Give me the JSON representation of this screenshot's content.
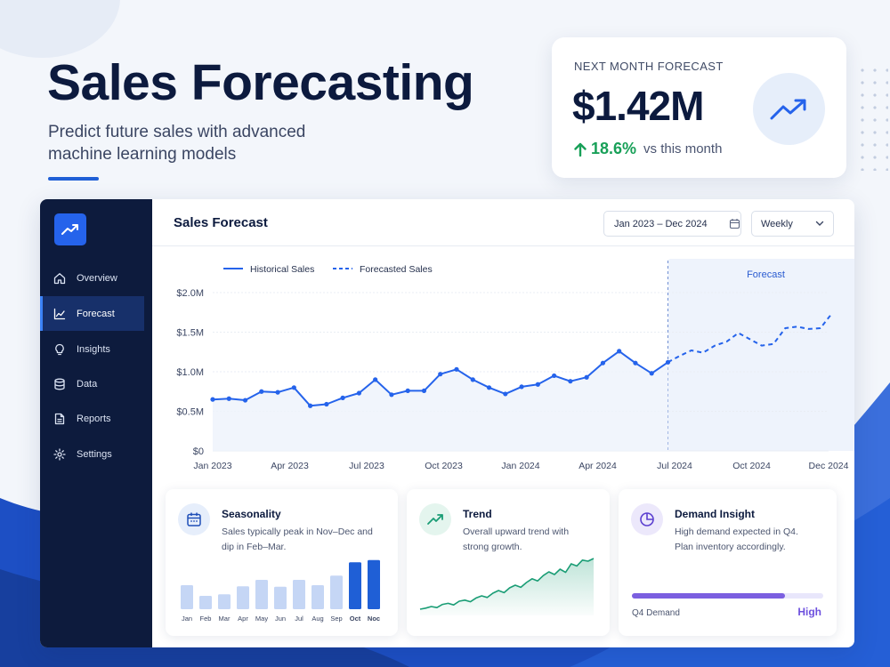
{
  "hero": {
    "title": "Sales Forecasting",
    "subtitle": "Predict future sales with advanced machine learning models"
  },
  "forecast_card": {
    "label": "NEXT MONTH FORECAST",
    "value": "$1.42M",
    "change": "18.6%",
    "change_suffix": "vs this month",
    "icon": "trend-up-icon"
  },
  "sidebar": {
    "items": [
      {
        "label": "Overview",
        "icon": "home-icon"
      },
      {
        "label": "Forecast",
        "icon": "chart-line-icon",
        "active": true
      },
      {
        "label": "Insights",
        "icon": "lightbulb-icon"
      },
      {
        "label": "Data",
        "icon": "database-icon"
      },
      {
        "label": "Reports",
        "icon": "document-icon"
      },
      {
        "label": "Settings",
        "icon": "gear-icon"
      }
    ]
  },
  "main": {
    "title": "Sales Forecast",
    "date_range": "Jan 2023 – Dec 2024",
    "period": "Weekly"
  },
  "chart_data": {
    "type": "line",
    "legend": [
      "Historical Sales",
      "Forecasted Sales"
    ],
    "region_label": "Forecast",
    "y_ticks": [
      "$2.0M",
      "$1.5M",
      "$1.0M",
      "$0.5M",
      "$0"
    ],
    "x_ticks": [
      "Jan 2023",
      "Apr 2023",
      "Jul 2023",
      "Oct 2023",
      "Jan 2024",
      "Apr 2024",
      "Jul 2024",
      "Oct 2024",
      "Dec 2024"
    ],
    "ylim": [
      0,
      2.0
    ],
    "x_range": [
      "2023-01",
      "2024-12"
    ],
    "forecast_start": "2024-06",
    "series": [
      {
        "name": "Historical Sales",
        "values": [
          0.65,
          0.66,
          0.64,
          0.75,
          0.74,
          0.8,
          0.57,
          0.59,
          0.67,
          0.73,
          0.9,
          0.71,
          0.76,
          0.76,
          0.97,
          1.03,
          0.9,
          0.8,
          0.72,
          0.81,
          0.84,
          0.95,
          0.88,
          0.93,
          1.11,
          1.26,
          1.11,
          0.98,
          1.12
        ],
        "markers": true
      },
      {
        "name": "Forecasted Sales",
        "values": [
          1.12,
          1.2,
          1.27,
          1.24,
          1.33,
          1.38,
          1.49,
          1.41,
          1.33,
          1.35,
          1.55,
          1.57,
          1.54,
          1.55,
          1.74
        ],
        "dashed": true
      }
    ]
  },
  "cards": {
    "seasonality": {
      "title": "Seasonality",
      "text": "Sales typically peak in Nov–Dec and dip in Feb–Mar.",
      "months": [
        "Jan",
        "Feb",
        "Mar",
        "Apr",
        "May",
        "Jun",
        "Jul",
        "Aug",
        "Sep",
        "Oct",
        "Noc"
      ],
      "values": [
        0.45,
        0.25,
        0.28,
        0.43,
        0.55,
        0.42,
        0.55,
        0.45,
        0.63,
        0.88,
        0.92
      ],
      "highlight": [
        "Oct",
        "Noc"
      ]
    },
    "trend": {
      "title": "Trend",
      "text": "Overall upward trend with strong growth.",
      "values": [
        0.05,
        0.07,
        0.1,
        0.08,
        0.14,
        0.16,
        0.13,
        0.2,
        0.22,
        0.19,
        0.26,
        0.3,
        0.27,
        0.35,
        0.4,
        0.36,
        0.45,
        0.5,
        0.46,
        0.55,
        0.62,
        0.58,
        0.68,
        0.75,
        0.7,
        0.8,
        0.74,
        0.9,
        0.86,
        0.97,
        0.95,
        1.0
      ]
    },
    "demand": {
      "title": "Demand Insight",
      "text": "High demand expected in Q4. Plan inventory accordingly.",
      "label": "Q4 Demand",
      "level": "High",
      "fill": 0.8
    }
  },
  "colors": {
    "accent": "#2563eb",
    "sidebar": "#0d1b3d",
    "positive": "#18a058",
    "trend": "#1a9d75",
    "demand": "#7b5fe0"
  }
}
